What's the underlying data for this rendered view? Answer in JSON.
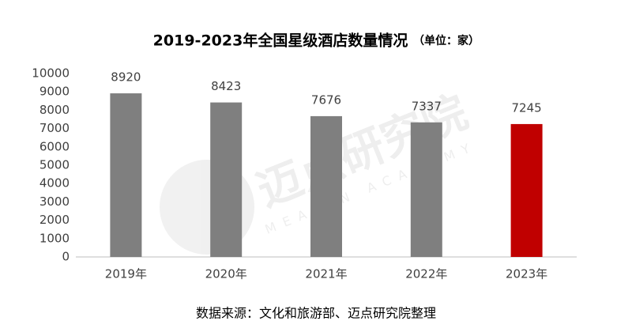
{
  "chart_data": {
    "type": "bar",
    "title": "2019-2023年全国星级酒店数量情况",
    "unit_note": "（单位：家）",
    "categories": [
      "2019年",
      "2020年",
      "2021年",
      "2022年",
      "2023年"
    ],
    "values": [
      8920,
      8423,
      7676,
      7337,
      7245
    ],
    "colors": [
      "#7f7f7f",
      "#7f7f7f",
      "#7f7f7f",
      "#7f7f7f",
      "#c00000"
    ],
    "ylim": [
      0,
      10000
    ],
    "yticks": [
      0,
      1000,
      2000,
      3000,
      4000,
      5000,
      6000,
      7000,
      8000,
      9000,
      10000
    ],
    "grid": false,
    "source": "数据来源：文化和旅游部、迈点研究院整理",
    "watermark": "迈点研究院",
    "watermark_en": "MEADIN ACADEMY"
  }
}
